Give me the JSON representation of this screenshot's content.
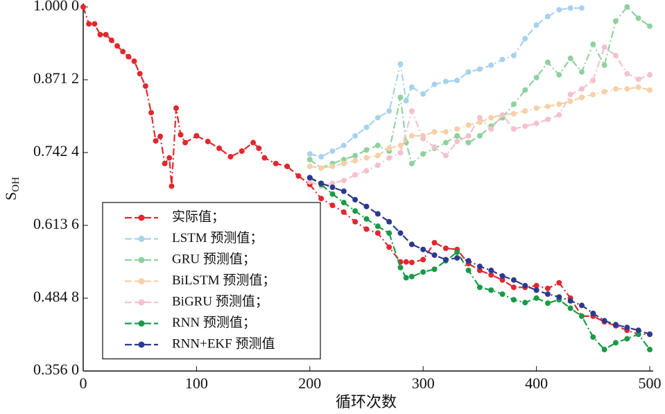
{
  "chart_data": {
    "type": "line",
    "ylabel": "S",
    "ylabel_sub": "OH",
    "xlabel": "循环次数",
    "xlim": [
      0,
      500
    ],
    "xticks": [
      0,
      100,
      200,
      300,
      400,
      500
    ],
    "ylim": [
      0.356,
      1.0
    ],
    "yticks": [
      {
        "value": 0.356,
        "label": "0.356 0"
      },
      {
        "value": 0.4848,
        "label": "0.484 8"
      },
      {
        "value": 0.6136,
        "label": "0.613 6"
      },
      {
        "value": 0.7424,
        "label": "0.742 4"
      },
      {
        "value": 0.8712,
        "label": "0.871 2"
      },
      {
        "value": 1.0,
        "label": "1.000 0"
      }
    ],
    "legend": "lower left",
    "series": [
      {
        "name": "实际值；",
        "color": "#e0282e",
        "x": [
          0,
          5,
          10,
          15,
          20,
          25,
          30,
          35,
          40,
          45,
          50,
          55,
          60,
          64,
          68,
          72,
          76,
          78,
          82,
          86,
          90,
          100,
          110,
          120,
          130,
          140,
          150,
          155,
          160,
          170,
          180,
          190,
          200,
          210,
          220,
          230,
          240,
          250,
          260,
          270,
          280,
          285,
          290,
          300,
          310,
          320,
          330,
          340,
          350,
          360,
          370,
          380,
          390,
          400,
          410,
          420,
          430,
          440,
          450,
          460,
          470,
          480,
          490,
          500
        ],
        "values": [
          1.0,
          0.97,
          0.97,
          0.951,
          0.951,
          0.941,
          0.931,
          0.921,
          0.912,
          0.904,
          0.882,
          0.86,
          0.813,
          0.763,
          0.771,
          0.723,
          0.733,
          0.683,
          0.821,
          0.774,
          0.76,
          0.772,
          0.762,
          0.75,
          0.735,
          0.745,
          0.76,
          0.75,
          0.733,
          0.723,
          0.718,
          0.701,
          0.686,
          0.661,
          0.649,
          0.637,
          0.62,
          0.607,
          0.6,
          0.575,
          0.549,
          0.549,
          0.548,
          0.553,
          0.583,
          0.573,
          0.571,
          0.546,
          0.534,
          0.526,
          0.517,
          0.504,
          0.504,
          0.507,
          0.502,
          0.512,
          0.485,
          0.453,
          0.453,
          0.443,
          0.436,
          0.428,
          0.421,
          0.421
        ]
      },
      {
        "name": "LSTM 预测值；",
        "color": "#a7d3ea",
        "x": [
          200,
          210,
          220,
          230,
          240,
          250,
          260,
          270,
          280,
          285,
          290,
          300,
          310,
          320,
          330,
          340,
          350,
          360,
          370,
          380,
          390,
          400,
          410,
          420,
          430,
          440
        ],
        "values": [
          0.74,
          0.735,
          0.745,
          0.755,
          0.772,
          0.787,
          0.804,
          0.816,
          0.899,
          0.834,
          0.858,
          0.846,
          0.863,
          0.868,
          0.87,
          0.885,
          0.89,
          0.897,
          0.907,
          0.914,
          0.944,
          0.968,
          0.983,
          0.995,
          0.998,
          0.998
        ]
      },
      {
        "name": "GRU 预测值；",
        "color": "#8fd19e",
        "x": [
          200,
          210,
          220,
          230,
          240,
          250,
          260,
          270,
          280,
          285,
          290,
          300,
          310,
          320,
          330,
          340,
          350,
          360,
          370,
          380,
          390,
          400,
          410,
          420,
          430,
          440,
          450,
          460,
          470,
          480,
          490,
          500
        ],
        "values": [
          0.73,
          0.715,
          0.723,
          0.73,
          0.737,
          0.747,
          0.755,
          0.745,
          0.84,
          0.76,
          0.723,
          0.74,
          0.75,
          0.76,
          0.772,
          0.76,
          0.772,
          0.789,
          0.804,
          0.828,
          0.853,
          0.875,
          0.902,
          0.88,
          0.909,
          0.885,
          0.934,
          0.897,
          0.975,
          1.0,
          0.98,
          0.966
        ]
      },
      {
        "name": "BiLSTM 预测值；",
        "color": "#f6d0a8",
        "x": [
          200,
          210,
          220,
          230,
          240,
          250,
          260,
          270,
          280,
          290,
          300,
          310,
          320,
          330,
          340,
          350,
          360,
          370,
          380,
          390,
          400,
          410,
          420,
          430,
          440,
          450,
          460,
          470,
          480,
          490,
          500
        ],
        "values": [
          0.718,
          0.715,
          0.718,
          0.723,
          0.728,
          0.733,
          0.737,
          0.75,
          0.755,
          0.772,
          0.772,
          0.779,
          0.779,
          0.784,
          0.791,
          0.796,
          0.804,
          0.809,
          0.811,
          0.816,
          0.821,
          0.824,
          0.828,
          0.833,
          0.84,
          0.845,
          0.85,
          0.855,
          0.855,
          0.858,
          0.853
        ]
      },
      {
        "name": "BiGRU 预测值；",
        "color": "#f4c2cc",
        "x": [
          200,
          210,
          220,
          230,
          240,
          250,
          260,
          270,
          280,
          290,
          300,
          310,
          320,
          330,
          340,
          350,
          360,
          370,
          380,
          390,
          400,
          410,
          420,
          430,
          440,
          450,
          460,
          470,
          480,
          490,
          500
        ],
        "values": [
          0.691,
          0.683,
          0.688,
          0.693,
          0.703,
          0.71,
          0.72,
          0.733,
          0.742,
          0.816,
          0.767,
          0.752,
          0.737,
          0.762,
          0.772,
          0.804,
          0.784,
          0.809,
          0.784,
          0.789,
          0.794,
          0.801,
          0.809,
          0.845,
          0.855,
          0.87,
          0.929,
          0.914,
          0.882,
          0.872,
          0.88
        ]
      },
      {
        "name": "RNN 预测值；",
        "color": "#1a9a46",
        "x": [
          200,
          210,
          220,
          230,
          240,
          250,
          260,
          270,
          280,
          285,
          290,
          300,
          310,
          320,
          330,
          340,
          350,
          360,
          370,
          380,
          390,
          400,
          410,
          420,
          430,
          440,
          450,
          460,
          470,
          480,
          490,
          500
        ],
        "values": [
          0.698,
          0.686,
          0.669,
          0.654,
          0.639,
          0.625,
          0.612,
          0.6,
          0.539,
          0.521,
          0.523,
          0.531,
          0.536,
          0.551,
          0.566,
          0.534,
          0.504,
          0.499,
          0.492,
          0.482,
          0.477,
          0.485,
          0.476,
          0.482,
          0.467,
          0.453,
          0.416,
          0.394,
          0.406,
          0.413,
          0.421,
          0.394
        ]
      },
      {
        "name": "RNN+EKF 预测值",
        "color": "#2b3a8f",
        "x": [
          200,
          210,
          220,
          230,
          240,
          250,
          260,
          270,
          280,
          290,
          300,
          310,
          320,
          330,
          340,
          350,
          360,
          370,
          380,
          390,
          400,
          410,
          420,
          430,
          440,
          450,
          460,
          470,
          480,
          490,
          500
        ],
        "values": [
          0.698,
          0.688,
          0.681,
          0.674,
          0.659,
          0.647,
          0.634,
          0.62,
          0.6,
          0.58,
          0.571,
          0.561,
          0.553,
          0.556,
          0.551,
          0.541,
          0.534,
          0.524,
          0.517,
          0.507,
          0.499,
          0.492,
          0.487,
          0.48,
          0.472,
          0.458,
          0.445,
          0.438,
          0.433,
          0.428,
          0.421
        ]
      }
    ]
  }
}
